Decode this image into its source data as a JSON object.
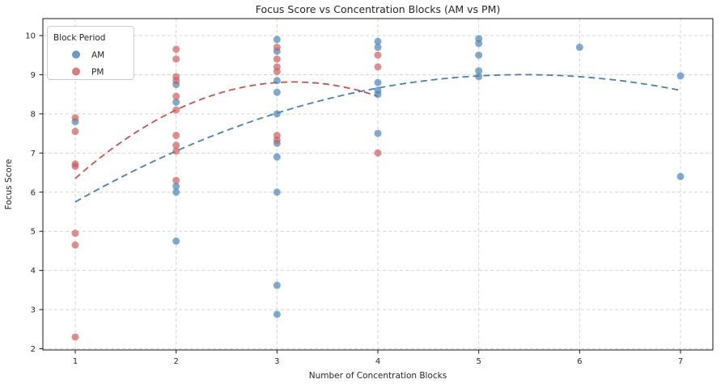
{
  "chart_data": {
    "type": "scatter",
    "title": "Focus Score vs Concentration Blocks (AM vs PM)",
    "xlabel": "Number of Concentration Blocks",
    "ylabel": "Focus Score",
    "xticks": [
      1,
      2,
      3,
      4,
      5,
      6,
      7
    ],
    "yticks": [
      2,
      3,
      4,
      5,
      6,
      7,
      8,
      9,
      10
    ],
    "xlim": [
      0.67,
      7.33
    ],
    "ylim": [
      1.95,
      10.45
    ],
    "grid": true,
    "grid_color": "#d4d4d4",
    "legend": {
      "title": "Block Period",
      "position": "upper-left",
      "items": [
        {
          "label": "AM",
          "color": "#4682B4"
        },
        {
          "label": "PM",
          "color": "#CD5C5C"
        }
      ]
    },
    "series": [
      {
        "name": "AM",
        "dot_color": "#4682B4",
        "dot_opacity": 0.68,
        "trend_color": "#3d7ab2",
        "trend_style": "dashed",
        "trend_quadratic_coeffs": [
          -0.165,
          1.795,
          4.12
        ],
        "trend_domain": [
          1,
          7
        ],
        "points": [
          [
            1,
            7.8
          ],
          [
            2,
            8.75
          ],
          [
            2,
            8.3
          ],
          [
            2,
            6.15
          ],
          [
            2,
            6.0
          ],
          [
            2,
            4.75
          ],
          [
            3,
            9.9
          ],
          [
            3,
            9.6
          ],
          [
            3,
            8.85
          ],
          [
            3,
            8.55
          ],
          [
            3,
            8.0
          ],
          [
            3,
            7.25
          ],
          [
            3,
            6.9
          ],
          [
            3,
            6.0
          ],
          [
            3,
            3.62
          ],
          [
            3,
            2.88
          ],
          [
            4,
            9.85
          ],
          [
            4,
            9.7
          ],
          [
            4,
            8.8
          ],
          [
            4,
            8.6
          ],
          [
            4,
            8.5
          ],
          [
            4,
            7.5
          ],
          [
            5,
            9.92
          ],
          [
            5,
            9.8
          ],
          [
            5,
            9.5
          ],
          [
            5,
            9.1
          ],
          [
            5,
            8.95
          ],
          [
            6,
            9.7
          ],
          [
            7,
            8.97
          ],
          [
            7,
            6.4
          ]
        ]
      },
      {
        "name": "PM",
        "dot_color": "#CD5C5C",
        "dot_opacity": 0.68,
        "trend_color": "#c04b46",
        "trend_style": "dashed",
        "trend_quadratic_coeffs": [
          -0.525,
          3.325,
          3.55
        ],
        "trend_domain": [
          1,
          4
        ],
        "points": [
          [
            1,
            7.9
          ],
          [
            1,
            7.55
          ],
          [
            1,
            6.72
          ],
          [
            1,
            6.66
          ],
          [
            1,
            4.95
          ],
          [
            1,
            4.65
          ],
          [
            1,
            2.3
          ],
          [
            2,
            9.65
          ],
          [
            2,
            9.4
          ],
          [
            2,
            8.95
          ],
          [
            2,
            8.85
          ],
          [
            2,
            8.45
          ],
          [
            2,
            8.1
          ],
          [
            2,
            7.45
          ],
          [
            2,
            7.2
          ],
          [
            2,
            7.05
          ],
          [
            2,
            6.3
          ],
          [
            3,
            9.7
          ],
          [
            3,
            9.4
          ],
          [
            3,
            9.2
          ],
          [
            3,
            9.08
          ],
          [
            3,
            7.45
          ],
          [
            3,
            7.33
          ],
          [
            4,
            9.5
          ],
          [
            4,
            9.2
          ],
          [
            4,
            7.0
          ]
        ]
      }
    ]
  }
}
